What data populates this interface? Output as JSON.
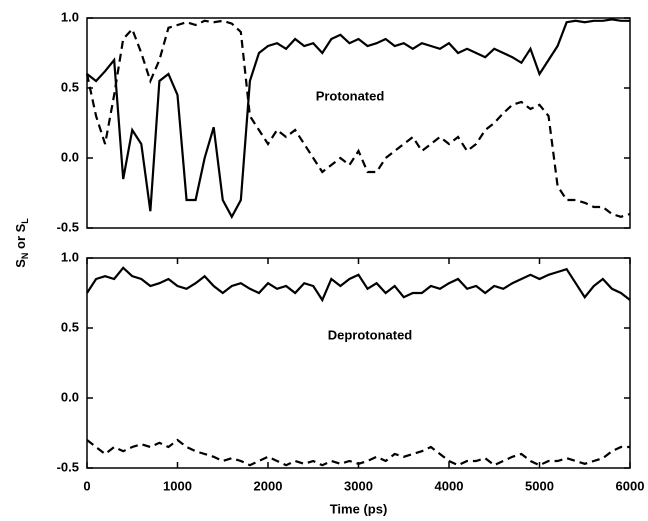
{
  "chart_data": [
    {
      "type": "line",
      "annotation": "Protonated",
      "ylabel": [
        "S",
        "N",
        " or S",
        "L"
      ],
      "xlim": [
        0,
        6000
      ],
      "ylim": [
        -0.5,
        1.0
      ],
      "yticks": [
        {
          "value": 1.0,
          "label": "1.0"
        },
        {
          "value": 0.5,
          "label": "0.5"
        },
        {
          "value": 0.0,
          "label": "0.0"
        },
        {
          "value": -0.5,
          "label": "-0.5"
        }
      ],
      "x": [
        0,
        100,
        200,
        300,
        400,
        500,
        600,
        700,
        800,
        900,
        1000,
        1100,
        1200,
        1300,
        1400,
        1500,
        1600,
        1700,
        1800,
        1900,
        2000,
        2100,
        2200,
        2300,
        2400,
        2500,
        2600,
        2700,
        2800,
        2900,
        3000,
        3100,
        3200,
        3300,
        3400,
        3500,
        3600,
        3700,
        3800,
        3900,
        4000,
        4100,
        4200,
        4300,
        4400,
        4500,
        4600,
        4700,
        4800,
        4900,
        5000,
        5100,
        5200,
        5300,
        5400,
        5500,
        5600,
        5700,
        5800,
        5900,
        6000
      ],
      "series": [
        {
          "color": "#000000",
          "dashed": false,
          "values": [
            0.6,
            0.55,
            0.62,
            0.7,
            -0.15,
            0.2,
            0.1,
            -0.38,
            0.55,
            0.6,
            0.45,
            -0.3,
            -0.3,
            0.0,
            0.22,
            -0.3,
            -0.42,
            -0.3,
            0.55,
            0.75,
            0.8,
            0.82,
            0.78,
            0.85,
            0.8,
            0.82,
            0.75,
            0.85,
            0.88,
            0.82,
            0.85,
            0.8,
            0.82,
            0.85,
            0.8,
            0.82,
            0.78,
            0.82,
            0.8,
            0.78,
            0.82,
            0.75,
            0.78,
            0.75,
            0.72,
            0.78,
            0.75,
            0.72,
            0.68,
            0.78,
            0.6,
            0.7,
            0.8,
            0.97,
            0.98,
            0.97,
            0.98,
            0.98,
            0.99,
            0.98,
            0.98
          ]
        },
        {
          "color": "#000000",
          "dashed": true,
          "values": [
            0.6,
            0.3,
            0.1,
            0.45,
            0.85,
            0.92,
            0.75,
            0.55,
            0.7,
            0.93,
            0.95,
            0.97,
            0.95,
            0.98,
            0.97,
            0.98,
            0.96,
            0.9,
            0.3,
            0.2,
            0.1,
            0.2,
            0.15,
            0.2,
            0.1,
            0.0,
            -0.1,
            -0.05,
            0.0,
            -0.05,
            0.05,
            -0.1,
            -0.1,
            0.0,
            0.05,
            0.1,
            0.15,
            0.05,
            0.1,
            0.15,
            0.1,
            0.15,
            0.05,
            0.1,
            0.2,
            0.25,
            0.32,
            0.38,
            0.4,
            0.35,
            0.38,
            0.3,
            -0.2,
            -0.3,
            -0.3,
            -0.32,
            -0.35,
            -0.35,
            -0.4,
            -0.42,
            -0.4
          ]
        }
      ]
    },
    {
      "type": "line",
      "annotation": "Deprotonated",
      "xlabel": "Time (ps)",
      "xlim": [
        0,
        6000
      ],
      "ylim": [
        -0.5,
        1.0
      ],
      "xticks": [
        0,
        1000,
        2000,
        3000,
        4000,
        5000,
        6000
      ],
      "yticks": [
        {
          "value": 1.0,
          "label": "1.0"
        },
        {
          "value": 0.5,
          "label": "0.5"
        },
        {
          "value": 0.0,
          "label": "0.0"
        },
        {
          "value": -0.5,
          "label": "-0.5"
        }
      ],
      "x": [
        0,
        100,
        200,
        300,
        400,
        500,
        600,
        700,
        800,
        900,
        1000,
        1100,
        1200,
        1300,
        1400,
        1500,
        1600,
        1700,
        1800,
        1900,
        2000,
        2100,
        2200,
        2300,
        2400,
        2500,
        2600,
        2700,
        2800,
        2900,
        3000,
        3100,
        3200,
        3300,
        3400,
        3500,
        3600,
        3700,
        3800,
        3900,
        4000,
        4100,
        4200,
        4300,
        4400,
        4500,
        4600,
        4700,
        4800,
        4900,
        5000,
        5100,
        5200,
        5300,
        5400,
        5500,
        5600,
        5700,
        5800,
        5900,
        6000
      ],
      "series": [
        {
          "color": "#000000",
          "dashed": false,
          "values": [
            0.75,
            0.85,
            0.87,
            0.85,
            0.93,
            0.87,
            0.85,
            0.8,
            0.82,
            0.85,
            0.8,
            0.78,
            0.82,
            0.87,
            0.8,
            0.75,
            0.8,
            0.82,
            0.78,
            0.75,
            0.82,
            0.78,
            0.8,
            0.75,
            0.82,
            0.8,
            0.7,
            0.85,
            0.8,
            0.85,
            0.88,
            0.78,
            0.82,
            0.75,
            0.8,
            0.72,
            0.75,
            0.75,
            0.8,
            0.78,
            0.82,
            0.85,
            0.78,
            0.8,
            0.75,
            0.8,
            0.78,
            0.82,
            0.85,
            0.88,
            0.85,
            0.88,
            0.9,
            0.92,
            0.82,
            0.72,
            0.8,
            0.85,
            0.78,
            0.75,
            0.7
          ]
        },
        {
          "color": "#000000",
          "dashed": true,
          "values": [
            -0.3,
            -0.35,
            -0.4,
            -0.35,
            -0.38,
            -0.35,
            -0.33,
            -0.35,
            -0.32,
            -0.35,
            -0.3,
            -0.35,
            -0.38,
            -0.4,
            -0.42,
            -0.45,
            -0.43,
            -0.45,
            -0.48,
            -0.45,
            -0.42,
            -0.45,
            -0.48,
            -0.45,
            -0.47,
            -0.45,
            -0.48,
            -0.45,
            -0.47,
            -0.45,
            -0.47,
            -0.45,
            -0.42,
            -0.45,
            -0.4,
            -0.42,
            -0.4,
            -0.38,
            -0.35,
            -0.4,
            -0.45,
            -0.48,
            -0.45,
            -0.45,
            -0.43,
            -0.48,
            -0.45,
            -0.42,
            -0.4,
            -0.45,
            -0.48,
            -0.45,
            -0.45,
            -0.43,
            -0.45,
            -0.47,
            -0.45,
            -0.43,
            -0.38,
            -0.35,
            -0.35
          ]
        }
      ]
    }
  ]
}
